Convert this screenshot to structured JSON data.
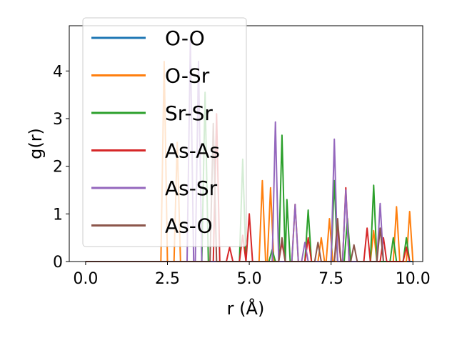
{
  "chart_data": {
    "type": "line",
    "xlabel": "r (Å)",
    "ylabel": "g(r)",
    "xlim": [
      -0.5,
      10.3
    ],
    "ylim": [
      0,
      4.95
    ],
    "xticks": [
      0.0,
      2.5,
      5.0,
      7.5,
      10.0
    ],
    "xtick_labels": [
      "0.0",
      "2.5",
      "5.0",
      "7.5",
      "10.0"
    ],
    "yticks": [
      0,
      1,
      2,
      3,
      4
    ],
    "ytick_labels": [
      "0",
      "1",
      "2",
      "3",
      "4"
    ],
    "grid": false,
    "legend_position": "top-left",
    "series": [
      {
        "name": "O-O",
        "color": "#1f77b4",
        "points": [
          [
            0,
            0
          ],
          [
            10,
            0
          ]
        ]
      },
      {
        "name": "O-Sr",
        "color": "#ff7f0e",
        "points": [
          [
            0,
            0
          ],
          [
            2.3,
            0
          ],
          [
            2.4,
            4.2
          ],
          [
            2.5,
            0
          ],
          [
            2.7,
            0
          ],
          [
            2.8,
            2.5
          ],
          [
            2.9,
            0
          ],
          [
            5.3,
            0
          ],
          [
            5.4,
            1.7
          ],
          [
            5.5,
            0
          ],
          [
            5.55,
            0
          ],
          [
            5.65,
            1.55
          ],
          [
            5.75,
            0
          ],
          [
            6.3,
            0
          ],
          [
            6.4,
            1.2
          ],
          [
            6.5,
            0
          ],
          [
            7.1,
            0
          ],
          [
            7.2,
            0.5
          ],
          [
            7.3,
            0
          ],
          [
            7.35,
            0
          ],
          [
            7.45,
            0.9
          ],
          [
            7.55,
            0
          ],
          [
            8.7,
            0
          ],
          [
            8.8,
            0.65
          ],
          [
            8.9,
            0
          ],
          [
            9.4,
            0
          ],
          [
            9.5,
            1.15
          ],
          [
            9.6,
            0
          ],
          [
            9.8,
            0
          ],
          [
            9.9,
            1.05
          ],
          [
            10,
            0
          ]
        ]
      },
      {
        "name": "Sr-Sr",
        "color": "#2ca02c",
        "points": [
          [
            0,
            0
          ],
          [
            3.55,
            0
          ],
          [
            3.65,
            3.55
          ],
          [
            3.75,
            0
          ],
          [
            4.7,
            0
          ],
          [
            4.8,
            2.15
          ],
          [
            4.9,
            0
          ],
          [
            5.6,
            0
          ],
          [
            5.7,
            0.25
          ],
          [
            5.8,
            0
          ],
          [
            5.9,
            0
          ],
          [
            6.0,
            2.65
          ],
          [
            6.1,
            0
          ],
          [
            6.1,
            0
          ],
          [
            6.15,
            1.3
          ],
          [
            6.25,
            0
          ],
          [
            6.7,
            0
          ],
          [
            6.8,
            1.08
          ],
          [
            6.9,
            0
          ],
          [
            7.5,
            0
          ],
          [
            7.6,
            1.7
          ],
          [
            7.7,
            0
          ],
          [
            7.9,
            0
          ],
          [
            8.0,
            0.9
          ],
          [
            8.1,
            0
          ],
          [
            8.7,
            0
          ],
          [
            8.8,
            1.6
          ],
          [
            8.9,
            0
          ],
          [
            9.3,
            0
          ],
          [
            9.4,
            0.5
          ],
          [
            9.5,
            0
          ],
          [
            9.7,
            0
          ],
          [
            9.8,
            0.5
          ],
          [
            9.9,
            0
          ]
        ]
      },
      {
        "name": "As-As",
        "color": "#d62728",
        "points": [
          [
            0,
            0
          ],
          [
            3.9,
            0
          ],
          [
            4.0,
            3.1
          ],
          [
            4.1,
            0
          ],
          [
            4.3,
            0
          ],
          [
            4.4,
            0.3
          ],
          [
            4.5,
            0
          ],
          [
            4.7,
            0
          ],
          [
            4.8,
            0.55
          ],
          [
            4.9,
            0
          ],
          [
            4.9,
            0
          ],
          [
            5.0,
            1.0
          ],
          [
            5.1,
            0
          ],
          [
            5.9,
            0
          ],
          [
            6.0,
            0.4
          ],
          [
            6.1,
            0
          ],
          [
            6.7,
            0
          ],
          [
            6.8,
            0.5
          ],
          [
            6.9,
            0
          ],
          [
            7.6,
            0
          ],
          [
            7.7,
            0.7
          ],
          [
            7.8,
            0
          ],
          [
            7.85,
            0
          ],
          [
            7.95,
            1.55
          ],
          [
            8.05,
            0
          ],
          [
            8.5,
            0
          ],
          [
            8.6,
            0.7
          ],
          [
            8.7,
            0
          ],
          [
            9.0,
            0
          ],
          [
            9.1,
            0.5
          ],
          [
            9.2,
            0
          ],
          [
            9.7,
            0
          ],
          [
            9.8,
            0.3
          ],
          [
            9.9,
            0
          ]
        ]
      },
      {
        "name": "As-Sr",
        "color": "#9467bd",
        "points": [
          [
            0,
            0
          ],
          [
            3.1,
            0
          ],
          [
            3.2,
            4.65
          ],
          [
            3.3,
            0
          ],
          [
            3.35,
            0
          ],
          [
            3.45,
            4.2
          ],
          [
            3.55,
            0
          ],
          [
            5.7,
            0
          ],
          [
            5.8,
            2.93
          ],
          [
            5.9,
            0
          ],
          [
            6.3,
            0
          ],
          [
            6.4,
            1.2
          ],
          [
            6.5,
            0
          ],
          [
            6.6,
            0
          ],
          [
            6.7,
            0.4
          ],
          [
            6.8,
            0
          ],
          [
            7.5,
            0
          ],
          [
            7.6,
            2.57
          ],
          [
            7.7,
            0
          ],
          [
            7.85,
            0
          ],
          [
            7.95,
            1.5
          ],
          [
            8.05,
            0
          ],
          [
            8.9,
            0
          ],
          [
            9.0,
            1.22
          ],
          [
            9.1,
            0
          ]
        ]
      },
      {
        "name": "As-O",
        "color": "#8c564b",
        "points": [
          [
            0,
            0
          ],
          [
            3.8,
            0
          ],
          [
            3.9,
            2.9
          ],
          [
            4.0,
            0
          ],
          [
            5.9,
            0
          ],
          [
            6.0,
            0.5
          ],
          [
            6.1,
            0
          ],
          [
            7.0,
            0
          ],
          [
            7.1,
            0.4
          ],
          [
            7.2,
            0
          ],
          [
            7.6,
            0
          ],
          [
            7.7,
            0.9
          ],
          [
            7.8,
            0
          ],
          [
            8.1,
            0
          ],
          [
            8.2,
            0.35
          ],
          [
            8.3,
            0
          ],
          [
            8.9,
            0
          ],
          [
            9.0,
            0.7
          ],
          [
            9.1,
            0
          ]
        ]
      }
    ]
  }
}
